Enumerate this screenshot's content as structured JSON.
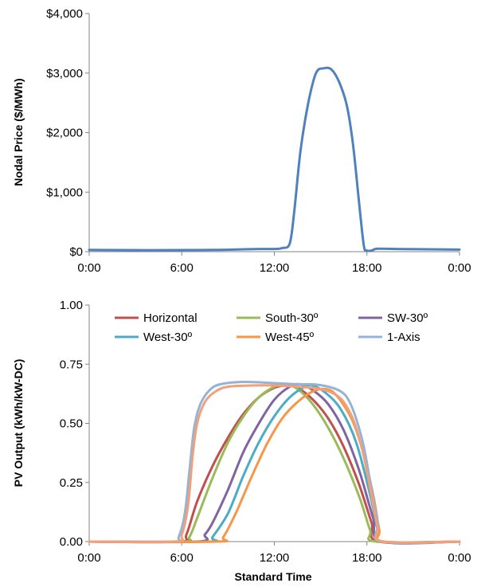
{
  "chart_data": [
    {
      "type": "line",
      "title": "",
      "xlabel": "",
      "ylabel": "Nodal Price ($/MWh)",
      "xticks": [
        "0:00",
        "6:00",
        "12:00",
        "18:00",
        "0:00"
      ],
      "yticks": [
        "$0",
        "$1,000",
        "$2,000",
        "$3,000",
        "$4,000"
      ],
      "xlim": [
        0,
        24
      ],
      "ylim": [
        0,
        4000
      ],
      "grid": false,
      "series": [
        {
          "color": "#4f81bd",
          "points": [
            [
              0,
              30
            ],
            [
              4,
              25
            ],
            [
              8,
              30
            ],
            [
              10,
              40
            ],
            [
              11,
              45
            ],
            [
              12,
              45
            ],
            [
              12.5,
              60
            ],
            [
              13,
              140
            ],
            [
              13.3,
              700
            ],
            [
              13.7,
              1700
            ],
            [
              14.2,
              2500
            ],
            [
              14.7,
              3000
            ],
            [
              15.2,
              3080
            ],
            [
              15.7,
              3060
            ],
            [
              16.2,
              2850
            ],
            [
              16.7,
              2450
            ],
            [
              17.1,
              1800
            ],
            [
              17.5,
              800
            ],
            [
              17.8,
              100
            ],
            [
              18.0,
              20
            ],
            [
              18.3,
              20
            ],
            [
              18.7,
              50
            ],
            [
              20,
              45
            ],
            [
              22,
              40
            ],
            [
              24,
              35
            ]
          ]
        }
      ]
    },
    {
      "type": "line",
      "title": "",
      "xlabel": "Standard Time",
      "ylabel": "PV Output (kWh/kW-DC)",
      "xticks": [
        "0:00",
        "6:00",
        "12:00",
        "18:00",
        "0:00"
      ],
      "yticks": [
        "0.00",
        "0.25",
        "0.50",
        "0.75",
        "1.00"
      ],
      "xlim": [
        0,
        24
      ],
      "ylim": [
        0,
        1
      ],
      "grid": false,
      "legend": "top",
      "series": [
        {
          "name": "Horizontal",
          "color": "#c0504d",
          "points": [
            [
              0,
              0
            ],
            [
              5.8,
              0
            ],
            [
              6.3,
              0.03
            ],
            [
              7,
              0.17
            ],
            [
              8,
              0.32
            ],
            [
              9,
              0.44
            ],
            [
              10,
              0.54
            ],
            [
              11,
              0.61
            ],
            [
              12,
              0.65
            ],
            [
              12.8,
              0.66
            ],
            [
              13.5,
              0.65
            ],
            [
              14.5,
              0.6
            ],
            [
              15.5,
              0.52
            ],
            [
              16.5,
              0.4
            ],
            [
              17.5,
              0.24
            ],
            [
              18.3,
              0.08
            ],
            [
              18.8,
              0
            ],
            [
              24,
              0
            ]
          ]
        },
        {
          "name": "South-30º",
          "color": "#9bbb59",
          "points": [
            [
              0,
              0
            ],
            [
              6,
              0
            ],
            [
              6.5,
              0.02
            ],
            [
              7,
              0.1
            ],
            [
              8,
              0.27
            ],
            [
              9,
              0.42
            ],
            [
              10,
              0.53
            ],
            [
              11,
              0.61
            ],
            [
              12,
              0.655
            ],
            [
              12.7,
              0.665
            ],
            [
              13.5,
              0.645
            ],
            [
              14.5,
              0.58
            ],
            [
              15.5,
              0.48
            ],
            [
              16.5,
              0.35
            ],
            [
              17.5,
              0.19
            ],
            [
              18.2,
              0.05
            ],
            [
              18.6,
              0
            ],
            [
              24,
              0
            ]
          ]
        },
        {
          "name": "SW-30º",
          "color": "#8064a2",
          "points": [
            [
              0,
              0
            ],
            [
              7,
              0
            ],
            [
              7.5,
              0.03
            ],
            [
              8,
              0.08
            ],
            [
              9,
              0.22
            ],
            [
              10,
              0.38
            ],
            [
              11,
              0.5
            ],
            [
              12,
              0.6
            ],
            [
              13,
              0.655
            ],
            [
              13.7,
              0.665
            ],
            [
              14.5,
              0.64
            ],
            [
              15.5,
              0.58
            ],
            [
              16.5,
              0.47
            ],
            [
              17.5,
              0.3
            ],
            [
              18.4,
              0.1
            ],
            [
              19,
              0
            ],
            [
              24,
              0
            ]
          ]
        },
        {
          "name": "West-30º",
          "color": "#4bacc6",
          "points": [
            [
              0,
              0
            ],
            [
              7.7,
              0
            ],
            [
              8,
              0.02
            ],
            [
              9,
              0.12
            ],
            [
              10,
              0.28
            ],
            [
              11,
              0.42
            ],
            [
              12,
              0.53
            ],
            [
              13,
              0.61
            ],
            [
              14,
              0.655
            ],
            [
              14.5,
              0.66
            ],
            [
              15.3,
              0.63
            ],
            [
              16.3,
              0.56
            ],
            [
              17.3,
              0.42
            ],
            [
              18.2,
              0.2
            ],
            [
              18.7,
              0.05
            ],
            [
              19,
              0
            ],
            [
              24,
              0
            ]
          ]
        },
        {
          "name": "West-45º",
          "color": "#f79646",
          "points": [
            [
              0,
              0
            ],
            [
              8.2,
              0
            ],
            [
              8.7,
              0.02
            ],
            [
              9.5,
              0.12
            ],
            [
              10.5,
              0.27
            ],
            [
              11.5,
              0.41
            ],
            [
              12.5,
              0.52
            ],
            [
              13.5,
              0.59
            ],
            [
              14.5,
              0.635
            ],
            [
              15.3,
              0.645
            ],
            [
              16,
              0.62
            ],
            [
              17,
              0.52
            ],
            [
              17.7,
              0.39
            ],
            [
              18.4,
              0.2
            ],
            [
              18.8,
              0.05
            ],
            [
              19.1,
              0
            ],
            [
              24,
              0
            ]
          ]
        },
        {
          "name": "1-Axis",
          "color": "#95b3d7",
          "points": [
            [
              0,
              0
            ],
            [
              5.4,
              0
            ],
            [
              5.8,
              0.02
            ],
            [
              6.2,
              0.12
            ],
            [
              6.5,
              0.3
            ],
            [
              6.8,
              0.48
            ],
            [
              7.2,
              0.58
            ],
            [
              7.8,
              0.64
            ],
            [
              8.5,
              0.665
            ],
            [
              10,
              0.675
            ],
            [
              12,
              0.67
            ],
            [
              13.5,
              0.665
            ],
            [
              14.5,
              0.665
            ],
            [
              15.5,
              0.655
            ],
            [
              16.3,
              0.635
            ],
            [
              16.8,
              0.6
            ],
            [
              17.3,
              0.52
            ],
            [
              17.8,
              0.4
            ],
            [
              18.3,
              0.22
            ],
            [
              18.7,
              0.08
            ],
            [
              19,
              0
            ],
            [
              24,
              0
            ]
          ]
        },
        {
          "color": "#f0a07a",
          "points": [
            [
              0,
              0
            ],
            [
              5.5,
              0
            ],
            [
              6,
              0.03
            ],
            [
              6.4,
              0.15
            ],
            [
              6.7,
              0.36
            ],
            [
              7,
              0.5
            ],
            [
              7.5,
              0.59
            ],
            [
              8.2,
              0.635
            ],
            [
              9,
              0.655
            ],
            [
              10.5,
              0.66
            ],
            [
              12,
              0.66
            ],
            [
              13.5,
              0.655
            ],
            [
              15,
              0.645
            ],
            [
              16,
              0.62
            ],
            [
              16.6,
              0.58
            ],
            [
              17.2,
              0.5
            ],
            [
              17.8,
              0.36
            ],
            [
              18.3,
              0.19
            ],
            [
              18.7,
              0.06
            ],
            [
              19,
              0
            ],
            [
              24,
              0
            ]
          ]
        }
      ]
    }
  ]
}
